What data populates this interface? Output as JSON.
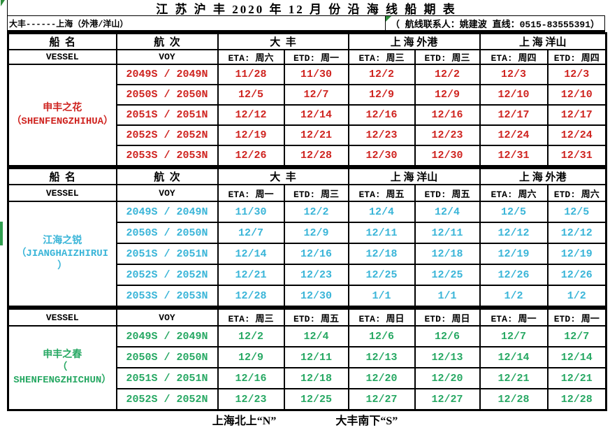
{
  "page": {
    "title": "江 苏 沪 丰 2020 年 12 月 份 沿 海 线 船 期 表",
    "route": "大丰------上海（外港/洋山）",
    "contact": "（ 航线联系人：姚建波 直线：0515-83555391）",
    "footer": {
      "north": "上海北上“N”",
      "south": "大丰南下“S”"
    }
  },
  "labels": {
    "vessel_cn": "船  名",
    "voy_cn": "航  次",
    "vessel_en": "VESSEL",
    "voy_en": "VOY"
  },
  "colors": {
    "red": "#cf2420",
    "cyan": "#3ab5d8",
    "green": "#27a863",
    "marker": "#2f9e4f"
  },
  "sections": [
    {
      "color": "#cf2420",
      "vessel": "申丰之花\n（SHENFENGZHIHUA）",
      "ports": [
        "大  丰",
        "上 海 外港",
        "上 海 洋山"
      ],
      "sched": [
        "ETA: 周六",
        "ETD: 周一",
        "ETA: 周三",
        "ETD: 周三",
        "ETA: 周四",
        "ETD: 周四"
      ],
      "rows": [
        {
          "voy": "2049S / 2049N",
          "dates": [
            "11/28",
            "11/30",
            "12/2",
            "12/2",
            "12/3",
            "12/3"
          ]
        },
        {
          "voy": "2050S / 2050N",
          "dates": [
            "12/5",
            "12/7",
            "12/9",
            "12/9",
            "12/10",
            "12/10"
          ]
        },
        {
          "voy": "2051S / 2051N",
          "dates": [
            "12/12",
            "12/14",
            "12/16",
            "12/16",
            "12/17",
            "12/17"
          ]
        },
        {
          "voy": "2052S / 2052N",
          "dates": [
            "12/19",
            "12/21",
            "12/23",
            "12/23",
            "12/24",
            "12/24"
          ]
        },
        {
          "voy": "2053S / 2053N",
          "dates": [
            "12/26",
            "12/28",
            "12/30",
            "12/30",
            "12/31",
            "12/31"
          ]
        }
      ]
    },
    {
      "color": "#3ab5d8",
      "vessel": "江海之锐\n（JIANGHAIZHIRUI\n）",
      "ports": [
        "大  丰",
        "上 海 洋山",
        "上 海 外港"
      ],
      "sched": [
        "ETA: 周一",
        "ETD: 周三",
        "ETA: 周五",
        "ETD: 周五",
        "ETA: 周六",
        "ETD: 周六"
      ],
      "rows": [
        {
          "voy": "2049S / 2049N",
          "dates": [
            "11/30",
            "12/2",
            "12/4",
            "12/4",
            "12/5",
            "12/5"
          ]
        },
        {
          "voy": "2050S / 2050N",
          "dates": [
            "12/7",
            "12/9",
            "12/11",
            "12/11",
            "12/12",
            "12/12"
          ]
        },
        {
          "voy": "2051S / 2051N",
          "dates": [
            "12/14",
            "12/16",
            "12/18",
            "12/18",
            "12/19",
            "12/19"
          ]
        },
        {
          "voy": "2052S / 2052N",
          "dates": [
            "12/21",
            "12/23",
            "12/25",
            "12/25",
            "12/26",
            "12/26"
          ]
        },
        {
          "voy": "2053S / 2053N",
          "dates": [
            "12/28",
            "12/30",
            "1/1",
            "1/1",
            "1/2",
            "1/2"
          ]
        }
      ]
    },
    {
      "color": "#27a863",
      "vessel": "申丰之春\n（\nSHENFENGZHICHUN）",
      "ports": [],
      "sched": [
        "ETA: 周三",
        "ETD: 周五",
        "ETA: 周日",
        "ETD: 周日",
        "ETA: 周一",
        "ETD: 周一"
      ],
      "rows": [
        {
          "voy": "2049S / 2049N",
          "dates": [
            "12/2",
            "12/4",
            "12/6",
            "12/6",
            "12/7",
            "12/7"
          ]
        },
        {
          "voy": "2050S / 2050N",
          "dates": [
            "12/9",
            "12/11",
            "12/13",
            "12/13",
            "12/14",
            "12/14"
          ]
        },
        {
          "voy": "2051S / 2051N",
          "dates": [
            "12/16",
            "12/18",
            "12/20",
            "12/20",
            "12/21",
            "12/21"
          ]
        },
        {
          "voy": "2052S / 2052N",
          "dates": [
            "12/23",
            "12/25",
            "12/27",
            "12/27",
            "12/28",
            "12/28"
          ]
        }
      ]
    }
  ]
}
